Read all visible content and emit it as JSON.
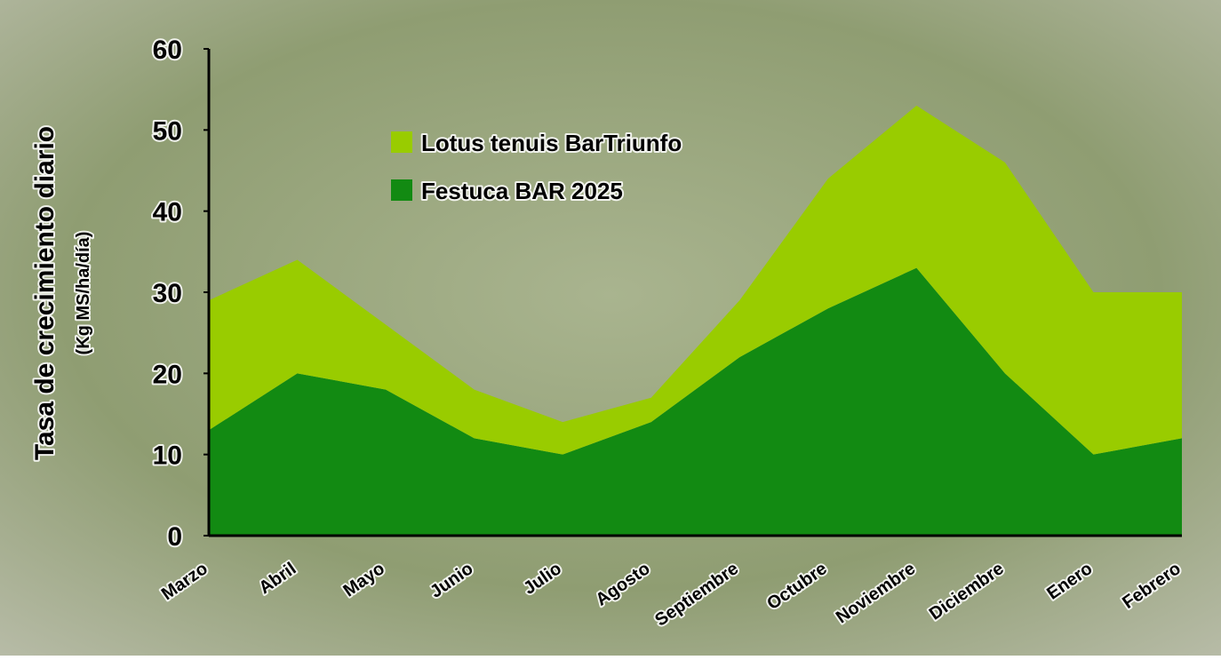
{
  "chart_data": {
    "type": "stacked_area",
    "y_label": "Tasa de crecimiento diario",
    "y_sublabel": "(Kg MS/ha/día)",
    "categories": [
      "Marzo",
      "Abril",
      "Mayo",
      "Junio",
      "Julio",
      "Agosto",
      "Septiembre",
      "Octubre",
      "Noviembre",
      "Diciembre",
      "Enero",
      "Febrero"
    ],
    "series": [
      {
        "name": "Festuca BAR 2025",
        "color": "#128a12",
        "values": [
          13,
          20,
          18,
          12,
          10,
          14,
          22,
          28,
          33,
          20,
          10,
          12
        ]
      },
      {
        "name": "Lotus tenuis BarTriunfo",
        "color": "#99cc00",
        "values": [
          16,
          14,
          8,
          6,
          4,
          3,
          7,
          16,
          20,
          26,
          20,
          18
        ]
      }
    ],
    "ylim": [
      0,
      60
    ],
    "yticks": [
      0,
      10,
      20,
      30,
      40,
      50,
      60
    ],
    "grid": false,
    "legend": "top-left"
  }
}
